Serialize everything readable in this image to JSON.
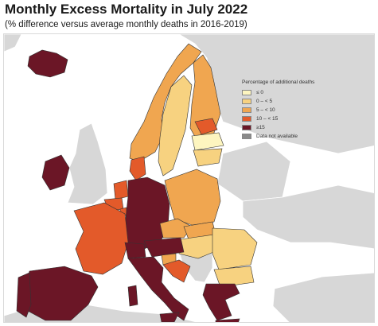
{
  "title": "Monthly Excess Mortality in July 2022",
  "subtitle": "(% difference versus average monthly deaths in 2016-2019)",
  "colors": {
    "background_sea": "#ffffff",
    "non_eu": "#d7d7d7",
    "border": "#333333"
  },
  "legend": {
    "title": "Percentage of additional deaths",
    "items": [
      {
        "label": "≤ 0",
        "color": "#fdf5bf"
      },
      {
        "label": "0 – < 5",
        "color": "#f7d280"
      },
      {
        "label": "5 – < 10",
        "color": "#f0a650"
      },
      {
        "label": "10 – < 15",
        "color": "#e35a2a"
      },
      {
        "label": "≥15",
        "color": "#6b1626"
      },
      {
        "label": "Data not available",
        "color": "#8a8a8a"
      }
    ]
  },
  "map_data": {
    "regions": [
      {
        "country": "Iceland",
        "class": "≥15"
      },
      {
        "country": "Ireland",
        "class": "≥15"
      },
      {
        "country": "Norway",
        "class": "5 – < 10"
      },
      {
        "country": "Sweden",
        "class": "0 – < 5"
      },
      {
        "country": "Finland",
        "class": "5 – < 10"
      },
      {
        "country": "Estonia",
        "class": "10 – < 15"
      },
      {
        "country": "Latvia",
        "class": "≤ 0"
      },
      {
        "country": "Lithuania",
        "class": "0 – < 5"
      },
      {
        "country": "Denmark",
        "class": "10 – < 15"
      },
      {
        "country": "Netherlands",
        "class": "10 – < 15"
      },
      {
        "country": "Belgium",
        "class": "10 – < 15"
      },
      {
        "country": "Luxembourg",
        "class": "10 – < 15"
      },
      {
        "country": "Germany",
        "class": "≥15"
      },
      {
        "country": "Poland",
        "class": "5 – < 10"
      },
      {
        "country": "Czechia",
        "class": "5 – < 10"
      },
      {
        "country": "Slovakia",
        "class": "5 – < 10"
      },
      {
        "country": "Hungary",
        "class": "0 – < 5"
      },
      {
        "country": "Romania",
        "class": "0 – < 5"
      },
      {
        "country": "Bulgaria",
        "class": "0 – < 5"
      },
      {
        "country": "France",
        "class": "10 – < 15"
      },
      {
        "country": "Switzerland",
        "class": "≥15"
      },
      {
        "country": "Liechtenstein",
        "class": "≥15"
      },
      {
        "country": "Austria",
        "class": "≥15"
      },
      {
        "country": "Slovenia",
        "class": "5 – < 10"
      },
      {
        "country": "Croatia",
        "class": "10 – < 15"
      },
      {
        "country": "Spain",
        "class": "≥15"
      },
      {
        "country": "Portugal",
        "class": "≥15"
      },
      {
        "country": "Italy",
        "class": "≥15"
      },
      {
        "country": "Malta",
        "class": "≥15"
      },
      {
        "country": "Greece",
        "class": "≥15"
      },
      {
        "country": "Cyprus",
        "class": "≥15"
      }
    ]
  }
}
